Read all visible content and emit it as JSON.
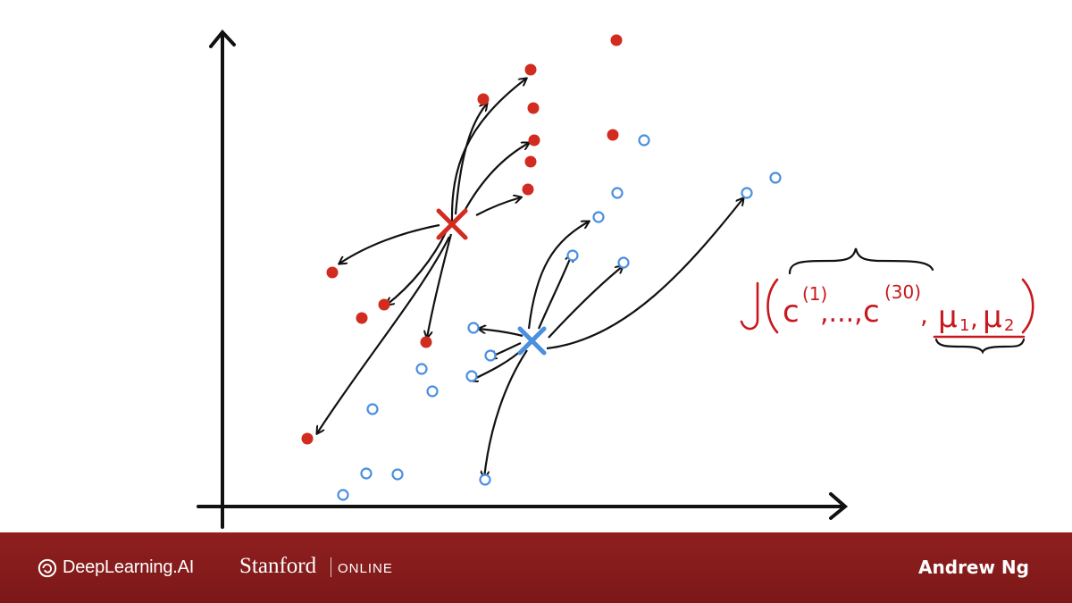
{
  "colors": {
    "ink": "#111111",
    "cluster1": "#d22b1f",
    "cluster2": "#4a8fe0",
    "annotation": "#c8171d",
    "footer_bg": "#8c1d1d"
  },
  "diagram": {
    "cluster1_points": 14,
    "cluster2_points": 16,
    "centroid1_icon": "red-x-centroid",
    "centroid2_icon": "blue-x-centroid",
    "formula": {
      "symbol": "J",
      "args": [
        "c",
        "(1)",
        ",...,",
        "c",
        "(30)",
        ",",
        "μ",
        "1",
        ",",
        "μ",
        "2"
      ]
    }
  },
  "footer": {
    "logo_text": "DeepLearning.AI",
    "stanford": "Stanford",
    "online": "ONLINE",
    "presenter": "Andrew Ng"
  }
}
